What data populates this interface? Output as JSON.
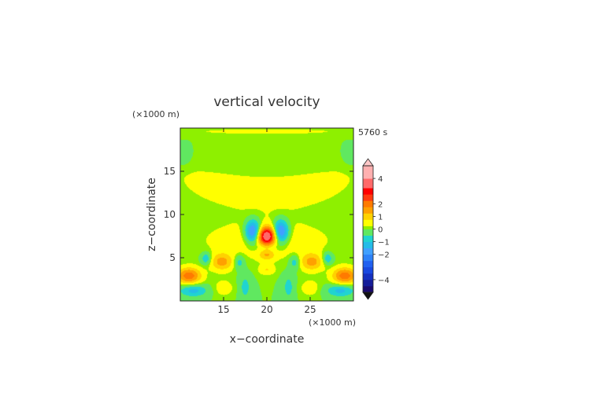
{
  "chart_data": {
    "type": "heatmap",
    "title": "vertical velocity",
    "xlabel": "x−coordinate",
    "ylabel": "z−coordinate",
    "x_unit": "(×1000 m)",
    "y_unit": "(×1000 m)",
    "time_label": "5760 s",
    "xlim": [
      10,
      30
    ],
    "ylim": [
      0,
      20
    ],
    "x_ticks": [
      15,
      20,
      25
    ],
    "y_ticks": [
      5,
      10,
      15
    ],
    "colorbar": {
      "tick_labels": [
        "4",
        "2",
        "1",
        "0",
        "−1",
        "−2",
        "−4"
      ],
      "tick_values": [
        4,
        2,
        1,
        0,
        -1,
        -2,
        -4
      ],
      "range": [
        -5,
        5
      ],
      "extend": "both"
    },
    "features": [
      {
        "kind": "updraft",
        "x": 20.0,
        "z": 7.5,
        "peak": 3.5
      },
      {
        "kind": "downdraft",
        "x": 18.5,
        "z": 8.0,
        "peak": -2.5
      },
      {
        "kind": "downdraft",
        "x": 21.5,
        "z": 8.0,
        "peak": -2.5
      },
      {
        "kind": "updraft",
        "x": 11.0,
        "z": 2.8,
        "peak": 2.0
      },
      {
        "kind": "updraft",
        "x": 14.8,
        "z": 4.5,
        "peak": 1.3
      },
      {
        "kind": "updraft",
        "x": 25.2,
        "z": 4.5,
        "peak": 1.3
      },
      {
        "kind": "updraft",
        "x": 29.0,
        "z": 2.8,
        "peak": 2.0
      }
    ]
  }
}
